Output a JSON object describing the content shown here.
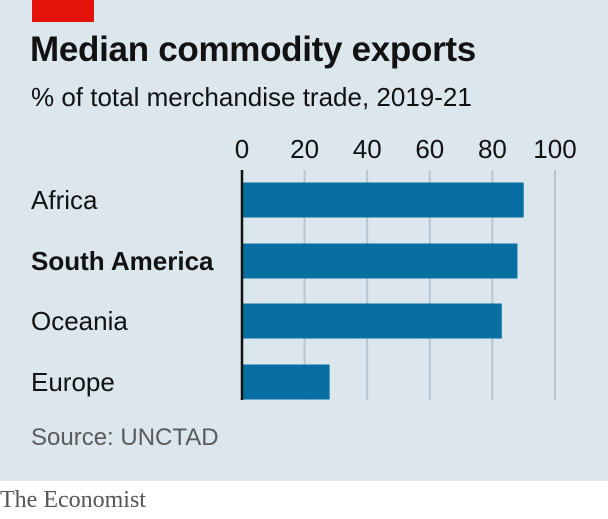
{
  "header": {
    "title": "Median commodity exports",
    "subtitle": "% of total merchandise trade, 2019-21"
  },
  "footer": {
    "source": "Source: UNCTAD",
    "brand": "The Economist"
  },
  "colors": {
    "background": "#dbe6ed",
    "bar": "#076fa1",
    "accent": "#e3120b",
    "grid": "#b7c6cf"
  },
  "chart_data": {
    "type": "bar",
    "orientation": "horizontal",
    "title": "Median commodity exports",
    "subtitle": "% of total merchandise trade, 2019-21",
    "categories": [
      "Africa",
      "South America",
      "Oceania",
      "Europe"
    ],
    "highlighted_category": "South America",
    "values": [
      90,
      88,
      83,
      28
    ],
    "xlim": [
      0,
      100
    ],
    "xticks": [
      0,
      20,
      40,
      60,
      80,
      100
    ],
    "xtick_position": "top",
    "grid": true,
    "legend": "none"
  }
}
